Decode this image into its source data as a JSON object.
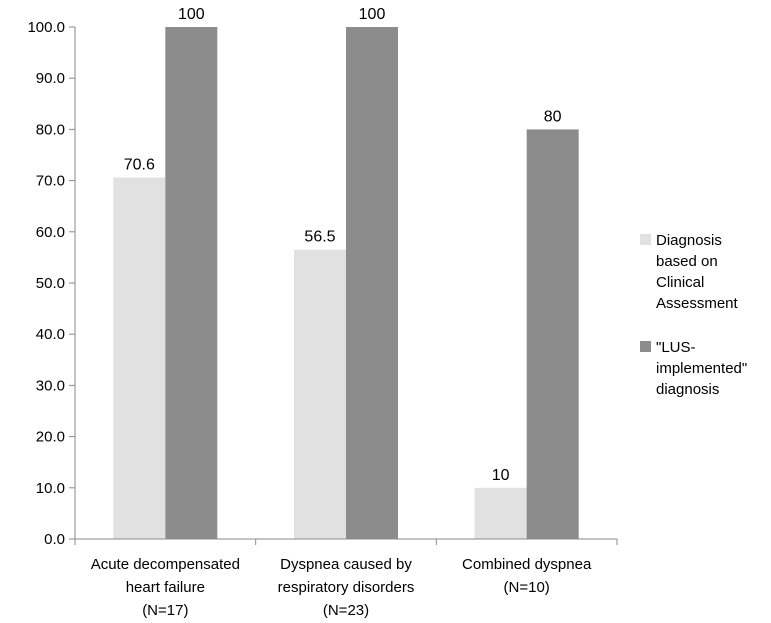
{
  "chart_data": {
    "type": "bar",
    "categories": [
      [
        "Acute decompensated",
        "heart failure",
        "(N=17)"
      ],
      [
        "Dyspnea caused by",
        "respiratory disorders",
        "(N=23)"
      ],
      [
        "Combined dyspnea",
        "(N=10)"
      ]
    ],
    "series": [
      {
        "name": "Diagnosis based on Clinical Assessment",
        "legend_lines": [
          "Diagnosis",
          "based on",
          "Clinical",
          "Assessment"
        ],
        "values": [
          70.6,
          56.5,
          10
        ],
        "labels": [
          "70.6",
          "56.5",
          "10"
        ],
        "color": "#e1e1e1"
      },
      {
        "name": "\"LUS-implemented\" diagnosis",
        "legend_lines": [
          "\"LUS-",
          "implemented\"",
          "diagnosis"
        ],
        "values": [
          100,
          100,
          80
        ],
        "labels": [
          "100",
          "100",
          "80"
        ],
        "color": "#8c8c8c"
      }
    ],
    "ylim": [
      0,
      100
    ],
    "yticks": [
      "0.0",
      "10.0",
      "20.0",
      "30.0",
      "40.0",
      "50.0",
      "60.0",
      "70.0",
      "80.0",
      "90.0",
      "100.0"
    ],
    "title": "",
    "xlabel": "",
    "ylabel": "",
    "grid": false,
    "legend_position": "right"
  }
}
